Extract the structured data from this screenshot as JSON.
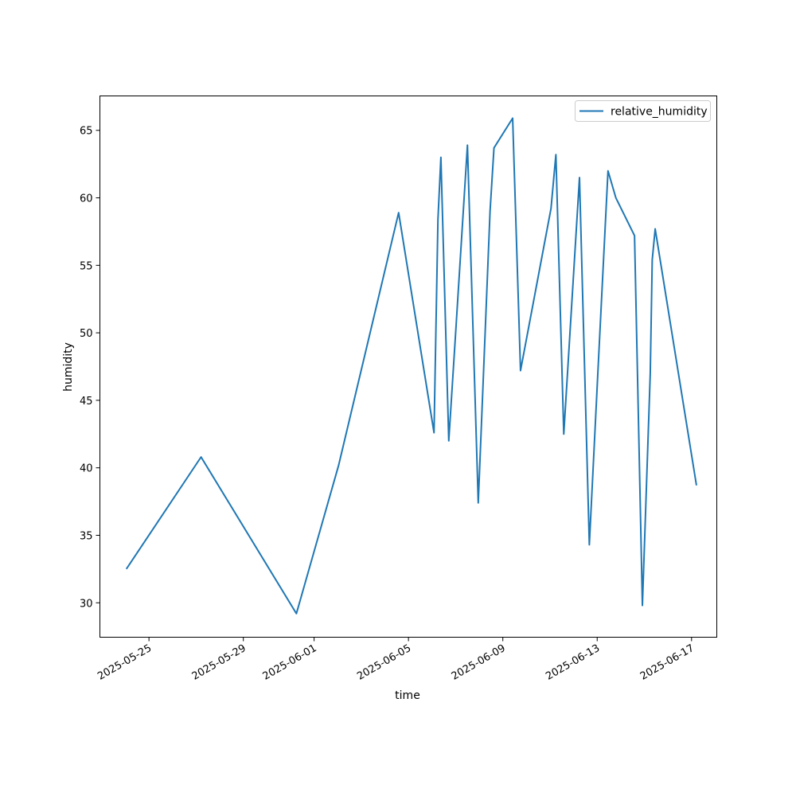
{
  "chart_data": {
    "type": "line",
    "title": "",
    "xlabel": "time",
    "ylabel": "humidity",
    "xlim": [
      "2025-05-22T22:05",
      "2025-06-18T01:41"
    ],
    "ylim": [
      27.45,
      67.55
    ],
    "grid": false,
    "legend_position": "top-right",
    "x_ticks": [
      "2025-05-25",
      "2025-05-29",
      "2025-06-01",
      "2025-06-05",
      "2025-06-09",
      "2025-06-13",
      "2025-06-17"
    ],
    "y_ticks": [
      30,
      35,
      40,
      45,
      50,
      55,
      60,
      65
    ],
    "series": [
      {
        "name": "relative_humidity",
        "color": "#1f77b4",
        "x": [
          "2025-05-24T01:00",
          "2025-05-27T05:00",
          "2025-05-31T06:00",
          "2025-06-02T01:00",
          "2025-06-04T14:00",
          "2025-06-06T02:00",
          "2025-06-06T06:00",
          "2025-06-06T09:00",
          "2025-06-06T17:00",
          "2025-06-07T00:00",
          "2025-06-07T12:00",
          "2025-06-07T23:00",
          "2025-06-08T11:00",
          "2025-06-08T15:00",
          "2025-06-09T10:00",
          "2025-06-09T18:00",
          "2025-06-11T01:00",
          "2025-06-11T06:00",
          "2025-06-11T14:00",
          "2025-06-12T06:00",
          "2025-06-12T16:00",
          "2025-06-13T01:00",
          "2025-06-13T11:00",
          "2025-06-13T19:00",
          "2025-06-14T14:00",
          "2025-06-14T22:00",
          "2025-06-15T06:00",
          "2025-06-15T08:00",
          "2025-06-15T11:00",
          "2025-06-16T04:00",
          "2025-06-17T05:00"
        ],
        "y": [
          32.5,
          40.8,
          29.2,
          40.2,
          58.9,
          42.6,
          58.4,
          63.0,
          42.0,
          50.0,
          63.9,
          37.4,
          59.0,
          63.7,
          65.9,
          47.2,
          59.2,
          63.2,
          42.5,
          61.5,
          34.3,
          47.5,
          62.0,
          60.0,
          57.2,
          29.8,
          47.0,
          55.4,
          57.7,
          50.0,
          38.7
        ]
      }
    ]
  }
}
